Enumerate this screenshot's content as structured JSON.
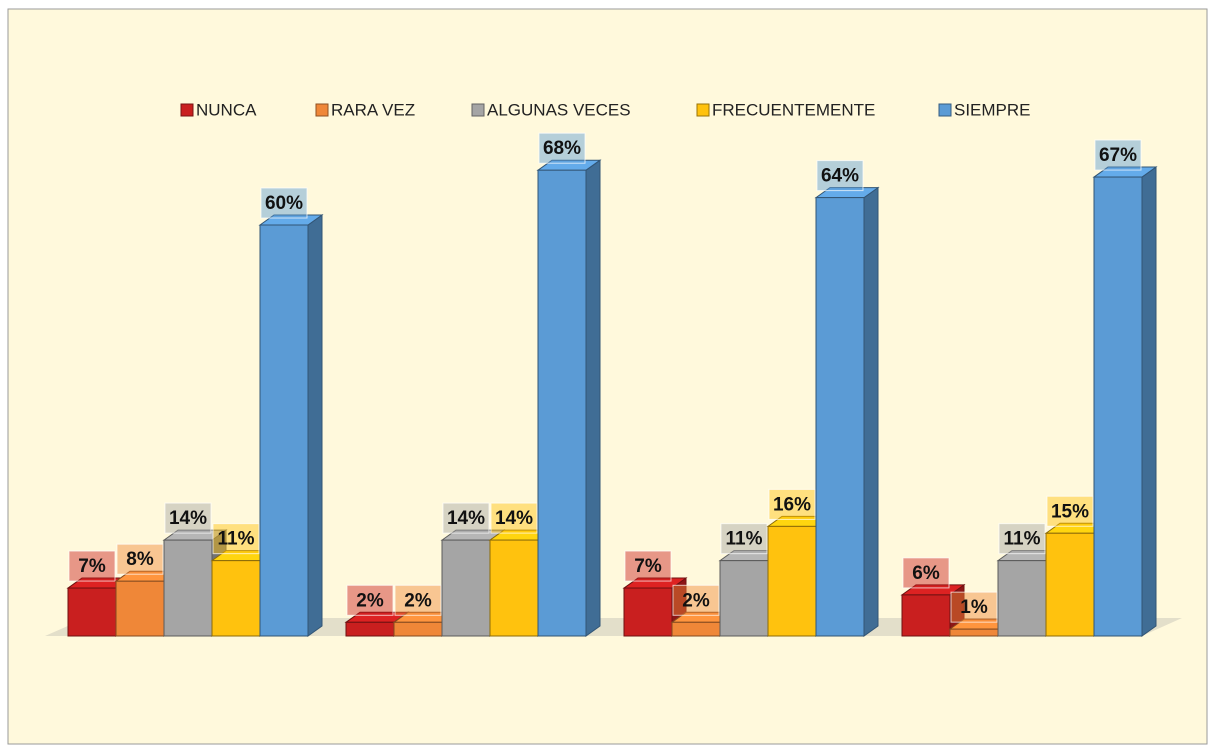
{
  "chart_data": {
    "type": "bar3d",
    "categories": [
      null,
      null,
      null,
      null
    ],
    "series": [
      {
        "name": "NUNCA",
        "color": "#c91f1f",
        "values": [
          7,
          2,
          7,
          6
        ],
        "value_labels": [
          "7%",
          "2%",
          "7%",
          "6%"
        ]
      },
      {
        "name": "RARA VEZ",
        "color": "#ef8738",
        "values": [
          8,
          2,
          2,
          1
        ],
        "value_labels": [
          "8%",
          "2%",
          "2%",
          "1%"
        ]
      },
      {
        "name": "ALGUNAS VECES",
        "color": "#a5a5a5",
        "values": [
          14,
          14,
          11,
          11
        ],
        "value_labels": [
          "14%",
          "14%",
          "11%",
          "11%"
        ]
      },
      {
        "name": "FRECUENTEMENTE",
        "color": "#ffc20e",
        "values": [
          11,
          14,
          16,
          15
        ],
        "value_labels": [
          "11%",
          "14%",
          "16%",
          "15%"
        ]
      },
      {
        "name": "SIEMPRE",
        "color": "#5b9bd5",
        "values": [
          60,
          68,
          64,
          67
        ],
        "value_labels": [
          "60%",
          "68%",
          "64%",
          "67%"
        ]
      }
    ],
    "legend": "top"
  }
}
